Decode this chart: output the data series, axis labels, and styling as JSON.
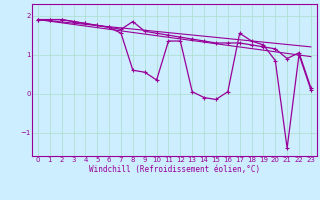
{
  "xlabel": "Windchill (Refroidissement éolien,°C)",
  "background_color": "#cceeff",
  "line_color": "#990099",
  "grid_color": "#aaddcc",
  "xlim": [
    -0.5,
    23.5
  ],
  "ylim": [
    -1.6,
    2.3
  ],
  "yticks": [
    -1,
    0,
    1,
    2
  ],
  "xticks": [
    0,
    1,
    2,
    3,
    4,
    5,
    6,
    7,
    8,
    9,
    10,
    11,
    12,
    13,
    14,
    15,
    16,
    17,
    18,
    19,
    20,
    21,
    22,
    23
  ],
  "series1": [
    1.9,
    1.9,
    1.9,
    1.85,
    1.8,
    1.75,
    1.7,
    1.65,
    1.85,
    1.6,
    1.55,
    1.5,
    1.45,
    1.4,
    1.35,
    1.3,
    1.3,
    1.3,
    1.25,
    1.2,
    1.15,
    0.9,
    1.05,
    0.15
  ],
  "series2": [
    1.9,
    1.9,
    1.9,
    1.85,
    1.8,
    1.75,
    1.7,
    1.55,
    0.6,
    0.55,
    0.35,
    1.35,
    1.35,
    0.05,
    -0.1,
    -0.15,
    0.05,
    1.55,
    1.35,
    1.25,
    0.85,
    -1.4,
    1.0,
    0.1
  ],
  "trend1_x": [
    0,
    23
  ],
  "trend1_y": [
    1.9,
    0.95
  ],
  "trend2_x": [
    0,
    23
  ],
  "trend2_y": [
    1.9,
    1.2
  ]
}
